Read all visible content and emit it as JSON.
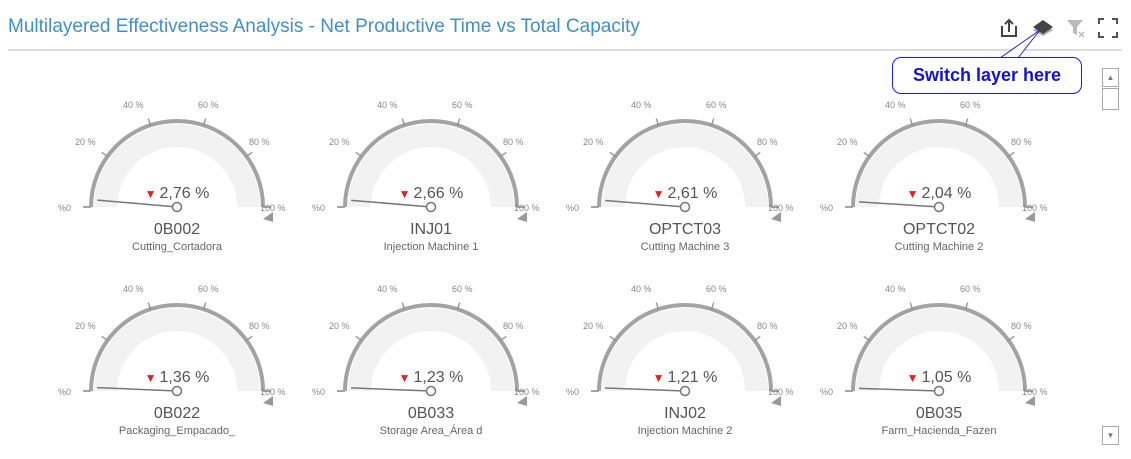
{
  "header": {
    "title": "Multilayered Effectiveness Analysis - Net Productive Time vs Total Capacity"
  },
  "toolbar": {
    "icons": [
      "share-icon",
      "layers-icon",
      "clear-filter-icon",
      "fullscreen-icon"
    ]
  },
  "callout": {
    "text": "Switch layer here"
  },
  "scale_labels": [
    "%0",
    "20 %",
    "40 %",
    "60 %",
    "80 %",
    "100 %"
  ],
  "colors": {
    "title": "#3d8fd1",
    "trend_down": "#e52222",
    "callout": "#1010e0"
  },
  "gauges": [
    {
      "value": 2.76,
      "value_text": "2,76 %",
      "trend": "down",
      "name": "0B002",
      "description": "Cutting_Cortadora"
    },
    {
      "value": 2.66,
      "value_text": "2,66 %",
      "trend": "down",
      "name": "INJ01",
      "description": "Injection Machine 1"
    },
    {
      "value": 2.61,
      "value_text": "2,61 %",
      "trend": "down",
      "name": "OPTCT03",
      "description": "Cutting Machine 3"
    },
    {
      "value": 2.04,
      "value_text": "2,04 %",
      "trend": "down",
      "name": "OPTCT02",
      "description": "Cutting Machine 2"
    },
    {
      "value": 1.36,
      "value_text": "1,36 %",
      "trend": "down",
      "name": "0B022",
      "description": "Packaging_Empacado_"
    },
    {
      "value": 1.23,
      "value_text": "1,23 %",
      "trend": "down",
      "name": "0B033",
      "description": "Storage Area_Área d"
    },
    {
      "value": 1.21,
      "value_text": "1,21 %",
      "trend": "down",
      "name": "INJ02",
      "description": "Injection Machine 2"
    },
    {
      "value": 1.05,
      "value_text": "1,05 %",
      "trend": "down",
      "name": "0B035",
      "description": "Farm_Hacienda_Fazen"
    }
  ]
}
